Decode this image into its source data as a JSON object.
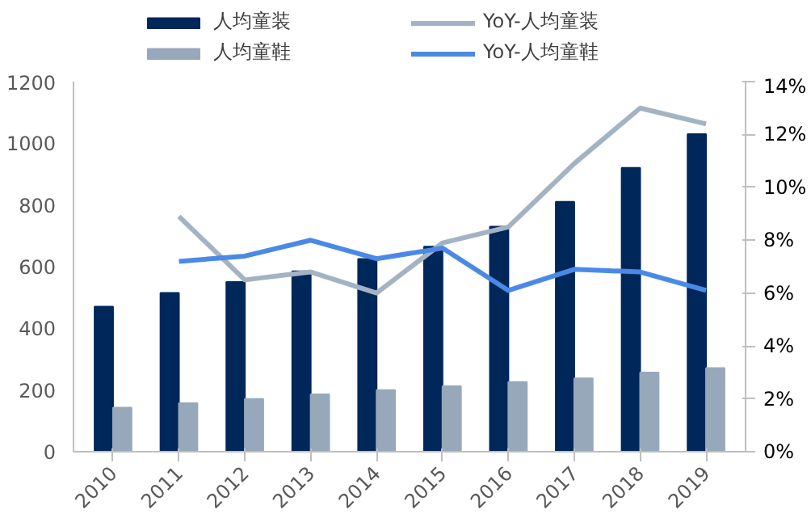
{
  "chart_data": {
    "type": "bar",
    "categories": [
      "2010",
      "2011",
      "2012",
      "2013",
      "2014",
      "2015",
      "2016",
      "2017",
      "2018",
      "2019"
    ],
    "series": [
      {
        "name": "人均童装",
        "color": "#00275a",
        "values": [
          470,
          515,
          550,
          585,
          625,
          665,
          730,
          810,
          920,
          1030
        ]
      },
      {
        "name": "人均童鞋",
        "color": "#97a8bb",
        "values": [
          143,
          157,
          171,
          186,
          200,
          212,
          226,
          238,
          257,
          271
        ]
      },
      {
        "name": "YoY-人均童装",
        "type": "line",
        "axis": "y2",
        "color": "#a3b3c3",
        "values": [
          null,
          8.9,
          6.5,
          6.8,
          6.0,
          7.9,
          8.5,
          10.9,
          13.0,
          12.4
        ]
      },
      {
        "name": "YoY-人均童鞋",
        "type": "line",
        "axis": "y2",
        "color": "#4a8ae6",
        "values": [
          null,
          7.2,
          7.4,
          8.0,
          7.3,
          7.7,
          6.1,
          6.9,
          6.8,
          6.1
        ]
      }
    ],
    "ylim": [
      0,
      1200
    ],
    "yticks": [
      0,
      200,
      400,
      600,
      800,
      1000,
      1200
    ],
    "y2lim": [
      0,
      14
    ],
    "y2ticks": [
      {
        "value": 0,
        "label": "0%"
      },
      {
        "value": 2,
        "label": "2%"
      },
      {
        "value": 4,
        "label": "4%"
      },
      {
        "value": 6,
        "label": "6%"
      },
      {
        "value": 8,
        "label": "8%"
      },
      {
        "value": 10,
        "label": "10%"
      },
      {
        "value": 12,
        "label": "12%"
      },
      {
        "value": 14,
        "label": "14%"
      }
    ],
    "grid": false,
    "legend": "top",
    "line_style": "solid"
  }
}
